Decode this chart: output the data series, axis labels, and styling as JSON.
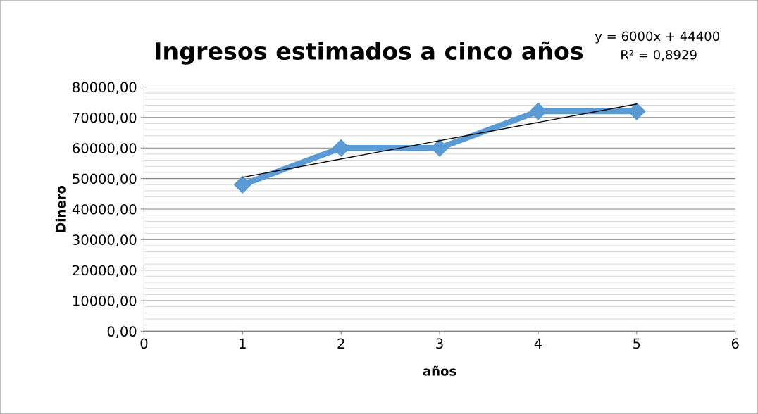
{
  "chart_data": {
    "type": "line",
    "title": "Ingresos estimados a cinco años",
    "xlabel": "años",
    "ylabel": "Dinero",
    "annotations": [
      "y = 6000x + 44400",
      "R² = 0,8929"
    ],
    "x": [
      1,
      2,
      3,
      4,
      5
    ],
    "series": [
      {
        "color": "#5b9bd5",
        "values": [
          48000,
          60000,
          60000,
          72000,
          72000
        ],
        "marker": "diamond"
      },
      {
        "type": "line",
        "color": "#000000",
        "x": [
          1,
          5
        ],
        "values": [
          50400,
          74400
        ],
        "marker": "none"
      }
    ],
    "xlim": [
      0,
      6
    ],
    "xticks": [
      0,
      1,
      2,
      3,
      4,
      5,
      6
    ],
    "ylim": [
      0,
      80000
    ],
    "yticks": [
      {
        "value": 0,
        "label": "0,00"
      },
      {
        "value": 10000,
        "label": "10000,00"
      },
      {
        "value": 20000,
        "label": "20000,00"
      },
      {
        "value": 30000,
        "label": "30000,00"
      },
      {
        "value": 40000,
        "label": "40000,00"
      },
      {
        "value": 50000,
        "label": "50000,00"
      },
      {
        "value": 60000,
        "label": "60000,00"
      },
      {
        "value": 70000,
        "label": "70000,00"
      },
      {
        "value": 80000,
        "label": "80000,00"
      }
    ],
    "grid": "y",
    "legend": false
  }
}
